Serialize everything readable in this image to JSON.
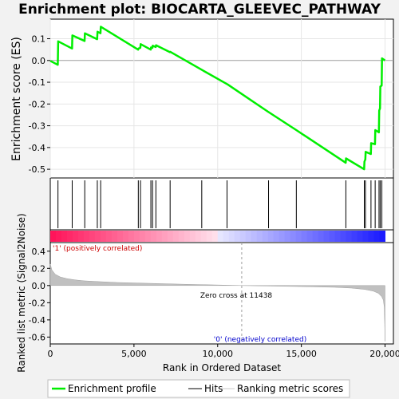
{
  "title": "Enrichment plot: BIOCARTA_GLEEVEC_PATHWAY",
  "colors": {
    "curve": "#00ee00",
    "hits": "#000000",
    "metric_fill": "#c0c0c0",
    "pos_label": "#cc0000",
    "neg_label": "#0000cc"
  },
  "chart_data": [
    {
      "type": "line",
      "panel": "enrichment",
      "title": "Enrichment plot: BIOCARTA_GLEEVEC_PATHWAY",
      "ylabel": "Enrichment score (ES)",
      "ylim": [
        -0.54,
        0.19
      ],
      "yticks": [
        0.1,
        0.0,
        -0.1,
        -0.2,
        -0.3,
        -0.4,
        -0.5
      ],
      "ytick_labels": [
        "0.1",
        "0.0",
        "-0.1",
        "-0.2",
        "-0.3",
        "-0.4",
        "-0.5"
      ],
      "xlim": [
        0,
        20500
      ],
      "grid": true,
      "series": [
        {
          "name": "Enrichment profile",
          "x": [
            0,
            450,
            470,
            1300,
            1320,
            2050,
            2070,
            2800,
            2820,
            3000,
            3020,
            5250,
            5270,
            5380,
            5400,
            6000,
            6020,
            6100,
            6120,
            6300,
            6320,
            7150,
            7170,
            9100,
            10600,
            13000,
            14700,
            17650,
            17670,
            18750,
            18770,
            18820,
            18840,
            19150,
            19170,
            19400,
            19420,
            19630,
            19650,
            19700,
            19720,
            19800,
            19820,
            20000
          ],
          "y": [
            -0.002,
            -0.02,
            0.088,
            0.055,
            0.115,
            0.09,
            0.125,
            0.098,
            0.132,
            0.125,
            0.155,
            0.05,
            0.055,
            0.058,
            0.075,
            0.05,
            0.06,
            0.058,
            0.068,
            0.062,
            0.07,
            0.038,
            0.04,
            -0.045,
            -0.11,
            -0.235,
            -0.32,
            -0.47,
            -0.45,
            -0.5,
            -0.465,
            -0.455,
            -0.42,
            -0.43,
            -0.38,
            -0.385,
            -0.32,
            -0.33,
            -0.23,
            -0.22,
            -0.12,
            -0.115,
            0.01,
            0.0
          ]
        }
      ]
    },
    {
      "type": "scatter",
      "panel": "hits",
      "series": [
        {
          "name": "Hits",
          "x": [
            460,
            1310,
            2060,
            2810,
            3010,
            5260,
            5390,
            6010,
            6110,
            6310,
            7160,
            9050,
            10560,
            13040,
            14700,
            17660,
            18760,
            18830,
            19160,
            19410,
            19640,
            19710,
            19810
          ]
        }
      ]
    },
    {
      "type": "area",
      "panel": "ranked_metric",
      "xlabel": "Rank in Ordered Dataset",
      "ylabel": "Ranked list metric (Signal2Noise)",
      "ylim": [
        -0.68,
        0.5
      ],
      "yticks": [
        0.4,
        0.2,
        0.0,
        -0.2,
        -0.4,
        -0.6
      ],
      "ytick_labels": [
        "0.4",
        "0.2",
        "0.0",
        "-0.2",
        "-0.4",
        "-0.6"
      ],
      "xticks": [
        0,
        5000,
        10000,
        15000,
        20000
      ],
      "xtick_labels": [
        "0",
        "5,000",
        "10,000",
        "15,000",
        "20,000"
      ],
      "xlim": [
        0,
        20500
      ],
      "zero_cross": 11438,
      "series": [
        {
          "name": "Ranking metric scores",
          "x": [
            0,
            100,
            300,
            600,
            1000,
            1500,
            2000,
            3000,
            4000,
            6000,
            8000,
            10000,
            11438,
            13000,
            15000,
            17000,
            18000,
            18800,
            19300,
            19600,
            19800,
            19900,
            19950,
            19980,
            20000
          ],
          "y": [
            0.25,
            0.18,
            0.13,
            0.1,
            0.08,
            0.065,
            0.055,
            0.045,
            0.035,
            0.025,
            0.015,
            0.007,
            0.0,
            -0.005,
            -0.012,
            -0.02,
            -0.03,
            -0.045,
            -0.065,
            -0.09,
            -0.13,
            -0.17,
            -0.25,
            -0.45,
            -0.65
          ]
        }
      ]
    }
  ],
  "annotations": {
    "zero_cross_label": "Zero cross at 11438",
    "pos_label": "'1' (positively correlated)",
    "neg_label": "'0' (negatively correlated)"
  },
  "legend": {
    "items": [
      "Enrichment profile",
      "Hits",
      "Ranking metric scores"
    ]
  }
}
